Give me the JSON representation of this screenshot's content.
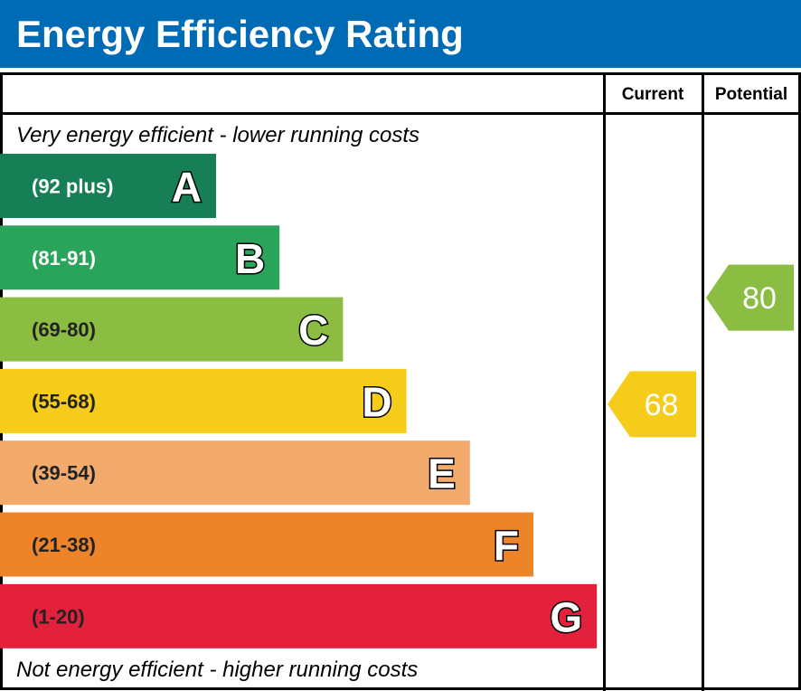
{
  "chart_data": {
    "type": "bar",
    "title": "Energy Efficiency Rating",
    "columns": [
      "Current",
      "Potential"
    ],
    "top_note": "Very energy efficient - lower running costs",
    "bottom_note": "Not energy efficient - higher running costs",
    "bands": [
      {
        "letter": "A",
        "range": "(92 plus)",
        "min": 92,
        "max": 100,
        "color": "#177f56"
      },
      {
        "letter": "B",
        "range": "(81-91)",
        "min": 81,
        "max": 91,
        "color": "#2ba45b"
      },
      {
        "letter": "C",
        "range": "(69-80)",
        "min": 69,
        "max": 80,
        "color": "#8cbd43"
      },
      {
        "letter": "D",
        "range": "(55-68)",
        "min": 55,
        "max": 68,
        "color": "#f6cc1a"
      },
      {
        "letter": "E",
        "range": "(39-54)",
        "min": 39,
        "max": 54,
        "color": "#f2aa6d"
      },
      {
        "letter": "F",
        "range": "(21-38)",
        "min": 21,
        "max": 38,
        "color": "#ee8429"
      },
      {
        "letter": "G",
        "range": "(1-20)",
        "min": 1,
        "max": 20,
        "color": "#e3213c"
      }
    ],
    "current": {
      "value": 68,
      "band": "D",
      "color": "#f6cc1a"
    },
    "potential": {
      "value": 80,
      "band": "C",
      "color": "#8cbd43"
    },
    "header_color": "#006bb5"
  }
}
